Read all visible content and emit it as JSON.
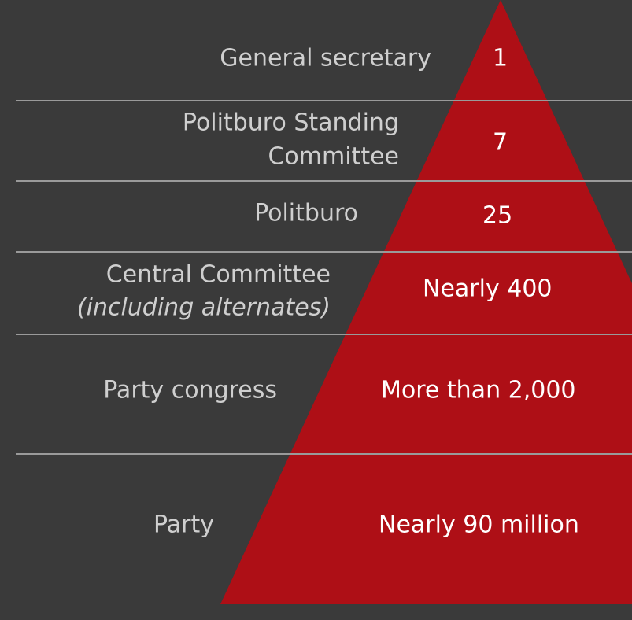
{
  "levels": [
    {
      "label": [
        "General secretary"
      ],
      "count": "1"
    },
    {
      "label": [
        "Politburo Standing",
        "Committee"
      ],
      "count": "7"
    },
    {
      "label": [
        "Politburo"
      ],
      "count": "25"
    },
    {
      "label": [
        "Central Committee"
      ],
      "note": "(including alternates)",
      "count": "Nearly 400"
    },
    {
      "label": [
        "Party congress"
      ],
      "count": "More than 2,000"
    },
    {
      "label": [
        "Party"
      ],
      "count": "Nearly 90 million"
    }
  ]
}
